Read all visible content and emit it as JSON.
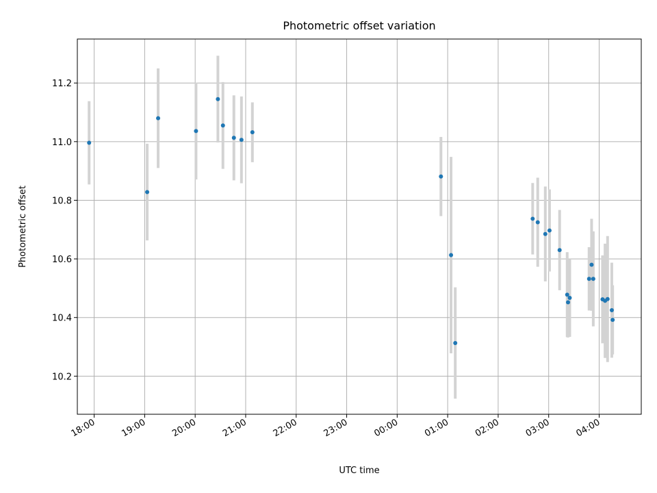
{
  "chart_data": {
    "type": "scatter",
    "title": "Photometric offset variation",
    "xlabel": "UTC time",
    "ylabel": "Photometric offset",
    "x_unit": "UTC time (hours, day boundary crossed at 00:00)",
    "xlim": [
      "17:40",
      "04:50"
    ],
    "ylim": [
      10.07,
      11.35
    ],
    "x_ticks": [
      "18:00",
      "19:00",
      "20:00",
      "21:00",
      "22:00",
      "23:00",
      "00:00",
      "01:00",
      "02:00",
      "03:00",
      "04:00"
    ],
    "y_ticks": [
      "10.2",
      "10.4",
      "10.6",
      "10.8",
      "11.0",
      "11.2"
    ],
    "grid": true,
    "series": [
      {
        "color": "#1f77b4",
        "error_color": "#d3d3d3",
        "points": [
          {
            "x": "17:54",
            "y": 10.996,
            "err": 0.142
          },
          {
            "x": "19:03",
            "y": 10.828,
            "err": 0.165
          },
          {
            "x": "19:16",
            "y": 11.08,
            "err": 0.17
          },
          {
            "x": "20:01",
            "y": 11.036,
            "err": 0.165
          },
          {
            "x": "20:27",
            "y": 11.145,
            "err": 0.148
          },
          {
            "x": "20:33",
            "y": 11.055,
            "err": 0.148
          },
          {
            "x": "20:46",
            "y": 11.013,
            "err": 0.145
          },
          {
            "x": "20:55",
            "y": 11.006,
            "err": 0.148
          },
          {
            "x": "21:08",
            "y": 11.032,
            "err": 0.102
          },
          {
            "x": "00:52",
            "y": 10.881,
            "err": 0.135
          },
          {
            "x": "01:04",
            "y": 10.613,
            "err": 0.335
          },
          {
            "x": "01:09",
            "y": 10.313,
            "err": 0.19
          },
          {
            "x": "02:41",
            "y": 10.737,
            "err": 0.122
          },
          {
            "x": "02:47",
            "y": 10.725,
            "err": 0.152
          },
          {
            "x": "02:56",
            "y": 10.685,
            "err": 0.162
          },
          {
            "x": "03:01",
            "y": 10.697,
            "err": 0.14
          },
          {
            "x": "03:13",
            "y": 10.63,
            "err": 0.137
          },
          {
            "x": "03:22",
            "y": 10.478,
            "err": 0.145
          },
          {
            "x": "03:23",
            "y": 10.452,
            "err": 0.12
          },
          {
            "x": "03:25",
            "y": 10.467,
            "err": 0.133
          },
          {
            "x": "03:48",
            "y": 10.532,
            "err": 0.108
          },
          {
            "x": "03:51",
            "y": 10.58,
            "err": 0.157
          },
          {
            "x": "03:53",
            "y": 10.532,
            "err": 0.162
          },
          {
            "x": "04:04",
            "y": 10.462,
            "err": 0.15
          },
          {
            "x": "04:07",
            "y": 10.457,
            "err": 0.195
          },
          {
            "x": "04:10",
            "y": 10.463,
            "err": 0.215
          },
          {
            "x": "04:15",
            "y": 10.425,
            "err": 0.162
          },
          {
            "x": "04:16",
            "y": 10.392,
            "err": 0.118
          }
        ]
      }
    ]
  }
}
